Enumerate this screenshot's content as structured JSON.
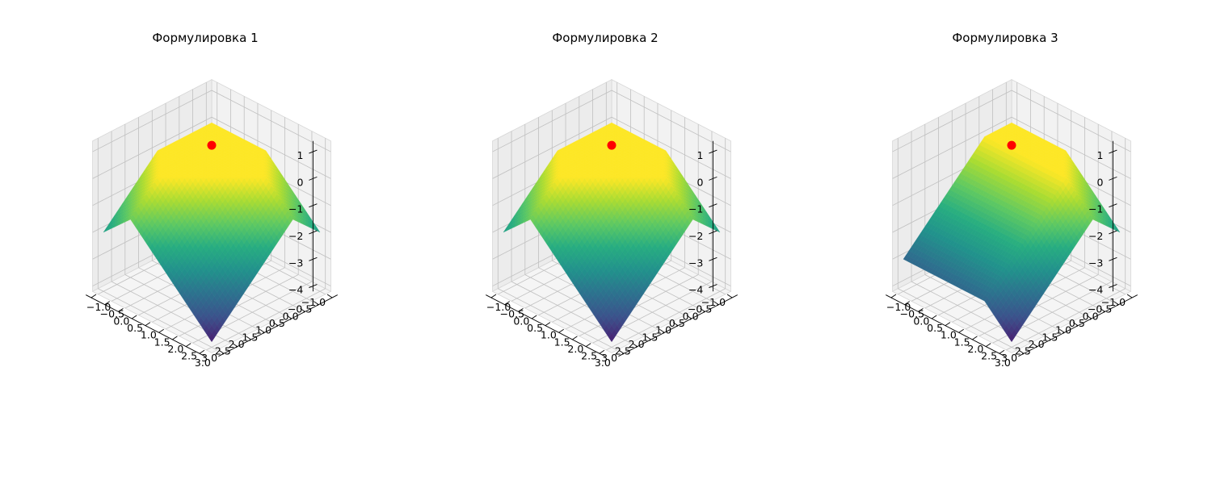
{
  "figure": {
    "panels": [
      {
        "title": "Формулировка 1"
      },
      {
        "title": "Формулировка 2"
      },
      {
        "title": "Формулировка 3"
      }
    ]
  },
  "chart_data": [
    {
      "type": "surface",
      "title": "Формулировка 1",
      "x_range": [
        -1.2,
        3.2
      ],
      "y_range": [
        -1.2,
        3.2
      ],
      "z_range": [
        -4.2,
        1.4
      ],
      "x_ticks": [
        "−1.0",
        "−0.5",
        "0.0",
        "0.5",
        "1.0",
        "1.5",
        "2.0",
        "2.5",
        "3.0"
      ],
      "y_ticks": [
        "−1.0",
        "−0.5",
        "0.0",
        "0.5",
        "1.0",
        "1.5",
        "2.0",
        "2.5",
        "3.0"
      ],
      "z_ticks": [
        "−4",
        "−3",
        "−2",
        "−1",
        "0",
        "1"
      ],
      "surface_formula": "z = min(0, 2 - |x| - |y|)",
      "surface_domain": [
        -1,
        3
      ],
      "colormap": "viridis",
      "marker": {
        "x": 0,
        "y": 0,
        "z": 0.2,
        "color": "#ff0000"
      },
      "grid": true
    },
    {
      "type": "surface",
      "title": "Формулировка 2",
      "x_range": [
        -1.2,
        3.2
      ],
      "y_range": [
        -1.2,
        3.2
      ],
      "z_range": [
        -4.2,
        1.4
      ],
      "x_ticks": [
        "−1.0",
        "−0.5",
        "0.0",
        "0.5",
        "1.0",
        "1.5",
        "2.0",
        "2.5",
        "3.0"
      ],
      "y_ticks": [
        "−1.0",
        "−0.5",
        "0.0",
        "0.5",
        "1.0",
        "1.5",
        "2.0",
        "2.5",
        "3.0"
      ],
      "z_ticks": [
        "−4",
        "−3",
        "−2",
        "−1",
        "0",
        "1"
      ],
      "surface_formula": "z = min(0, 2 - |x| - |y|)",
      "surface_domain": [
        -1,
        3
      ],
      "colormap": "viridis",
      "marker": {
        "x": 0,
        "y": 0,
        "z": 0.2,
        "color": "#ff0000"
      },
      "grid": true
    },
    {
      "type": "surface",
      "title": "Формулировка 3",
      "x_range": [
        -1.2,
        3.2
      ],
      "y_range": [
        -1.2,
        3.2
      ],
      "z_range": [
        -4.2,
        1.4
      ],
      "x_ticks": [
        "−1.0",
        "−0.5",
        "0.0",
        "0.5",
        "1.0",
        "1.5",
        "2.0",
        "2.5",
        "3.0"
      ],
      "y_ticks": [
        "−1.0",
        "−0.5",
        "0.0",
        "0.5",
        "1.0",
        "1.5",
        "2.0",
        "2.5",
        "3.0"
      ],
      "z_ticks": [
        "−4",
        "−3",
        "−2",
        "−1",
        "0",
        "1"
      ],
      "surface_formula": "z = min(0, 2 - |x| - |y|, -x)",
      "surface_domain": [
        -1,
        3
      ],
      "colormap": "viridis",
      "marker": {
        "x": 0,
        "y": 0,
        "z": 0.2,
        "color": "#ff0000"
      },
      "grid": true
    }
  ]
}
